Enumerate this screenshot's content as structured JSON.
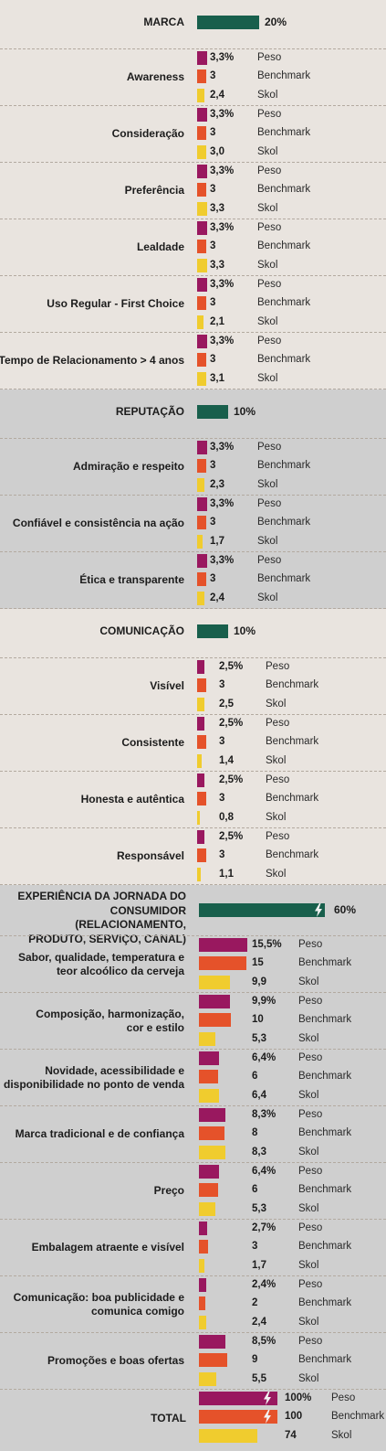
{
  "colors": {
    "peso": "#99185f",
    "benchmark": "#e5522a",
    "skol": "#f0cc2e",
    "section": "#185f4c",
    "bg_light": "#e9e4df",
    "bg_gray": "#cfcfcf",
    "bolt_light": "#f2f2f2",
    "bolt_dark": "#f0cc2e"
  },
  "series_names": [
    "Peso",
    "Benchmark",
    "Skol"
  ],
  "chart_data": {
    "type": "bar",
    "sections": [
      {
        "label": "MARCA",
        "weight": 20,
        "weight_label": "20%",
        "bg": "light",
        "items": [
          {
            "label": "Awareness",
            "values": [
              3.3,
              3,
              2.4
            ],
            "labels": [
              "3,3%",
              "3",
              "2,4"
            ]
          },
          {
            "label": "Consideração",
            "values": [
              3.3,
              3,
              3.0
            ],
            "labels": [
              "3,3%",
              "3",
              "3,0"
            ]
          },
          {
            "label": "Preferência",
            "values": [
              3.3,
              3,
              3.3
            ],
            "labels": [
              "3,3%",
              "3",
              "3,3"
            ]
          },
          {
            "label": "Lealdade",
            "values": [
              3.3,
              3,
              3.3
            ],
            "labels": [
              "3,3%",
              "3",
              "3,3"
            ]
          },
          {
            "label": "Uso Regular - First Choice",
            "values": [
              3.3,
              3,
              2.1
            ],
            "labels": [
              "3,3%",
              "3",
              "2,1"
            ]
          },
          {
            "label": "Tempo de Relacionamento > 4 anos",
            "values": [
              3.3,
              3,
              3.1
            ],
            "labels": [
              "3,3%",
              "3",
              "3,1"
            ]
          }
        ]
      },
      {
        "label": "REPUTAÇÃO",
        "weight": 10,
        "weight_label": "10%",
        "bg": "gray",
        "items": [
          {
            "label": "Admiração e respeito",
            "values": [
              3.3,
              3,
              2.3
            ],
            "labels": [
              "3,3%",
              "3",
              "2,3"
            ]
          },
          {
            "label": "Confiável e consistência na ação",
            "values": [
              3.3,
              3,
              1.7
            ],
            "labels": [
              "3,3%",
              "3",
              "1,7"
            ]
          },
          {
            "label": "Ética e transparente",
            "values": [
              3.3,
              3,
              2.4
            ],
            "labels": [
              "3,3%",
              "3",
              "2,4"
            ]
          }
        ]
      },
      {
        "label": "COMUNICAÇÃO",
        "weight": 10,
        "weight_label": "10%",
        "bg": "light",
        "items": [
          {
            "label": "Visível",
            "values": [
              2.5,
              3,
              2.5
            ],
            "labels": [
              "2,5%",
              "3",
              "2,5"
            ]
          },
          {
            "label": "Consistente",
            "values": [
              2.5,
              3,
              1.4
            ],
            "labels": [
              "2,5%",
              "3",
              "1,4"
            ]
          },
          {
            "label": "Honesta e autêntica",
            "values": [
              2.5,
              3,
              0.8
            ],
            "labels": [
              "2,5%",
              "3",
              "0,8"
            ]
          },
          {
            "label": "Responsável",
            "values": [
              2.5,
              3,
              1.1
            ],
            "labels": [
              "2,5%",
              "3",
              "1,1"
            ]
          }
        ]
      },
      {
        "label": [
          "EXPERIÊNCIA DA JORNADA DO",
          "CONSUMIDOR (RELACIONAMENTO,",
          "PRODUTO, SERVIÇO, CANAL)"
        ],
        "weight": 60,
        "weight_label": "60%",
        "bg": "gray",
        "items": [
          {
            "label": [
              "Sabor, qualidade, temperatura e",
              "teor alcoólico da cerveja"
            ],
            "values": [
              15.5,
              15,
              9.9
            ],
            "labels": [
              "15,5%",
              "15",
              "9,9"
            ]
          },
          {
            "label": [
              "Composição, harmonização,",
              "cor e estilo"
            ],
            "values": [
              9.9,
              10,
              5.3
            ],
            "labels": [
              "9,9%",
              "10",
              "5,3"
            ]
          },
          {
            "label": [
              "Novidade, acessibilidade e",
              "disponibilidade no ponto de venda"
            ],
            "values": [
              6.4,
              6,
              6.4
            ],
            "labels": [
              "6,4%",
              "6",
              "6,4"
            ]
          },
          {
            "label": "Marca tradicional e de confiança",
            "values": [
              8.3,
              8,
              8.3
            ],
            "labels": [
              "8,3%",
              "8",
              "8,3"
            ]
          },
          {
            "label": "Preço",
            "values": [
              6.4,
              6,
              5.3
            ],
            "labels": [
              "6,4%",
              "6",
              "5,3"
            ]
          },
          {
            "label": "Embalagem atraente e visível",
            "values": [
              2.7,
              3,
              1.7
            ],
            "labels": [
              "2,7%",
              "3",
              "1,7"
            ]
          },
          {
            "label": [
              "Comunicação: boa publicidade e",
              "comunica comigo"
            ],
            "values": [
              2.4,
              2,
              2.4
            ],
            "labels": [
              "2,4%",
              "2",
              "2,4"
            ]
          },
          {
            "label": "Promoções e boas ofertas",
            "values": [
              8.5,
              9,
              5.5
            ],
            "labels": [
              "8,5%",
              "9",
              "5,5"
            ]
          }
        ]
      }
    ],
    "total": {
      "label": "TOTAL",
      "values": [
        100,
        100,
        74
      ],
      "labels": [
        "100%",
        "100",
        "74"
      ]
    }
  }
}
